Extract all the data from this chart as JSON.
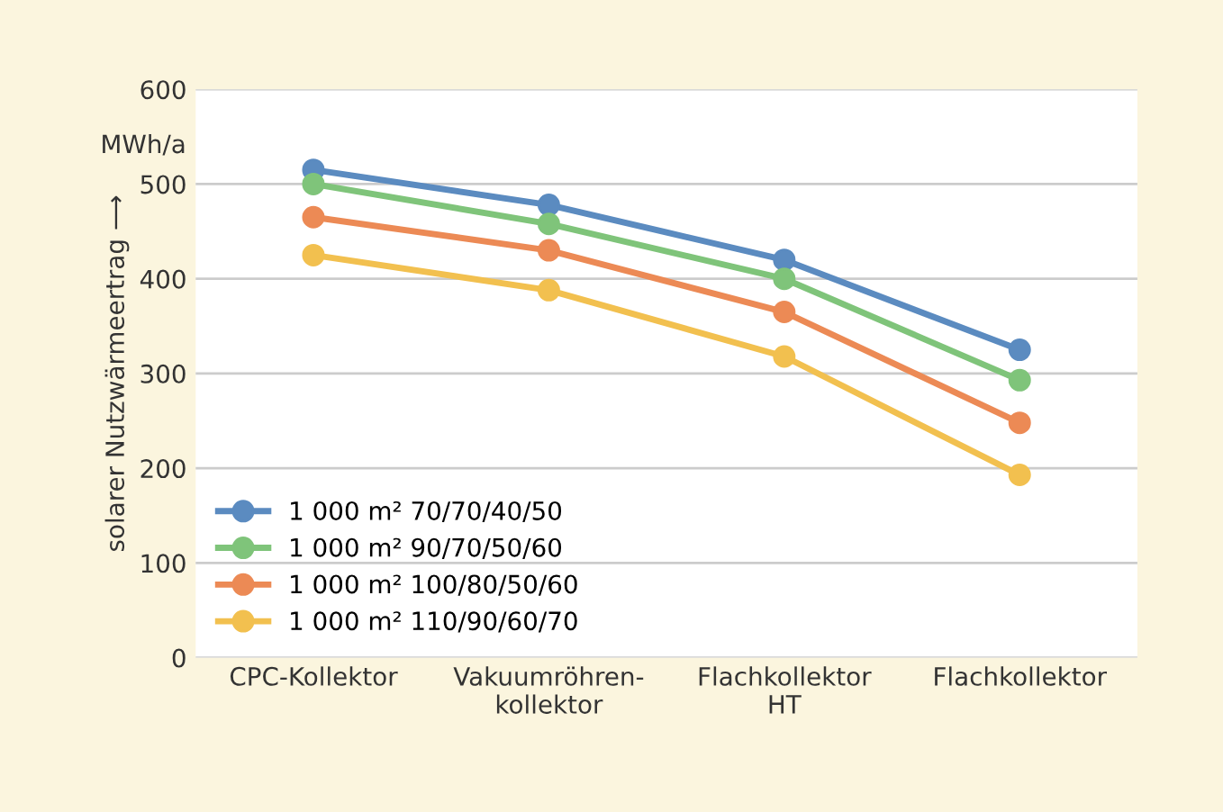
{
  "chart_data": {
    "type": "line",
    "ylabel": "solarer Nutzwärmeertrag ⟶",
    "annotations": [
      "MWh/a"
    ],
    "categories": [
      "CPC-Kollektor",
      "Vakuumröhren-\nkollektor",
      "Flachkollektor\nHT",
      "Flachkollektor"
    ],
    "series": [
      {
        "name": "1 000 m² 70/70/40/50",
        "color": "#5b8bc0",
        "values": [
          515,
          478,
          420,
          325
        ]
      },
      {
        "name": "1 000 m² 90/70/50/60",
        "color": "#7fc47a",
        "values": [
          500,
          458,
          400,
          293
        ]
      },
      {
        "name": "1 000 m² 100/80/50/60",
        "color": "#ec8a55",
        "values": [
          465,
          430,
          365,
          248
        ]
      },
      {
        "name": "1 000 m² 110/90/60/70",
        "color": "#f2c04f",
        "values": [
          425,
          388,
          318,
          193
        ]
      }
    ],
    "ylim": [
      0,
      600
    ],
    "yticks": [
      0,
      100,
      200,
      300,
      400,
      500,
      600
    ],
    "grid": "y",
    "legend": "bottom left",
    "marker": "circle",
    "line_style": "solid"
  }
}
